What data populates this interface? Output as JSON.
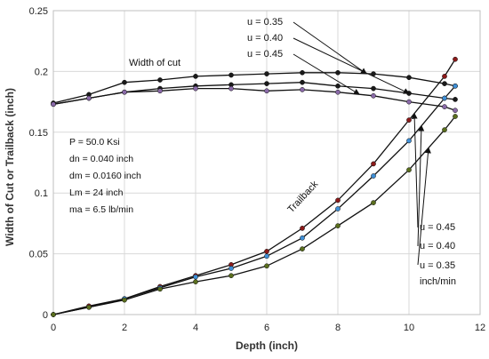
{
  "chart_data": {
    "type": "line",
    "xlabel": "Depth (inch)",
    "ylabel": "Width of Cut or Trailback (inch)",
    "xlim": [
      0,
      12
    ],
    "ylim": [
      0,
      0.25
    ],
    "xticks": [
      0,
      2,
      4,
      6,
      8,
      10,
      12
    ],
    "yticks": [
      0,
      0.05,
      0.1,
      0.15,
      0.2,
      0.25
    ],
    "ytick_labels": [
      "0",
      "0.05",
      "0.1",
      "0.15",
      "0.2",
      "0.25"
    ],
    "grid": true,
    "series": [
      {
        "name": "Width of cut, u = 0.35",
        "group": "width",
        "color": "#1a1a1a",
        "x": [
          0,
          1,
          2,
          3,
          4,
          5,
          6,
          7,
          8,
          9,
          10,
          11,
          11.3
        ],
        "y": [
          0.174,
          0.181,
          0.191,
          0.193,
          0.196,
          0.197,
          0.198,
          0.199,
          0.199,
          0.198,
          0.195,
          0.19,
          0.188
        ]
      },
      {
        "name": "Width of cut, u = 0.40",
        "group": "width",
        "color": "#1a1a1a",
        "x": [
          0,
          1,
          2,
          3,
          4,
          5,
          6,
          7,
          8,
          9,
          10,
          11,
          11.3
        ],
        "y": [
          0.173,
          0.178,
          0.183,
          0.186,
          0.188,
          0.189,
          0.19,
          0.191,
          0.188,
          0.186,
          0.182,
          0.178,
          0.177
        ]
      },
      {
        "name": "Width of cut, u = 0.45",
        "group": "width",
        "color": "#8a6aa8",
        "x": [
          0,
          1,
          2,
          3,
          4,
          5,
          6,
          7,
          8,
          9,
          10,
          11,
          11.3
        ],
        "y": [
          0.173,
          0.178,
          0.183,
          0.184,
          0.186,
          0.186,
          0.184,
          0.185,
          0.183,
          0.18,
          0.175,
          0.171,
          0.168
        ]
      },
      {
        "name": "Trailback, u = 0.45",
        "group": "trailback",
        "color": "#8b1a1a",
        "x": [
          0,
          1,
          2,
          3,
          4,
          5,
          6,
          7,
          8,
          9,
          10,
          11,
          11.3
        ],
        "y": [
          0,
          0.007,
          0.013,
          0.023,
          0.032,
          0.041,
          0.052,
          0.071,
          0.094,
          0.124,
          0.16,
          0.196,
          0.21
        ]
      },
      {
        "name": "Trailback, u = 0.40",
        "group": "trailback",
        "color": "#3f8fd6",
        "x": [
          0,
          1,
          2,
          3,
          4,
          5,
          6,
          7,
          8,
          9,
          10,
          11,
          11.3
        ],
        "y": [
          0,
          0.006,
          0.013,
          0.022,
          0.031,
          0.038,
          0.048,
          0.063,
          0.087,
          0.114,
          0.143,
          0.178,
          0.188
        ]
      },
      {
        "name": "Trailback, u = 0.35",
        "group": "trailback",
        "color": "#5a6e1e",
        "x": [
          0,
          1,
          2,
          3,
          4,
          5,
          6,
          7,
          8,
          9,
          10,
          11,
          11.3
        ],
        "y": [
          0,
          0.006,
          0.012,
          0.021,
          0.027,
          0.032,
          0.04,
          0.054,
          0.073,
          0.092,
          0.119,
          0.152,
          0.163
        ]
      }
    ],
    "annotations": {
      "width_label": "Width of cut",
      "trailback_label": "Trailback",
      "width_u": [
        "u = 0.35",
        "u = 0.40",
        "u = 0.45"
      ],
      "trail_u": [
        "u = 0.45",
        "u = 0.40",
        "u = 0.35"
      ],
      "units": "inch/min",
      "params": [
        "P    = 50.0 Ksi",
        "dn = 0.040 inch",
        "dm = 0.0160 inch",
        "Lm = 24 inch",
        "ma = 6.5 lb/min"
      ]
    }
  }
}
